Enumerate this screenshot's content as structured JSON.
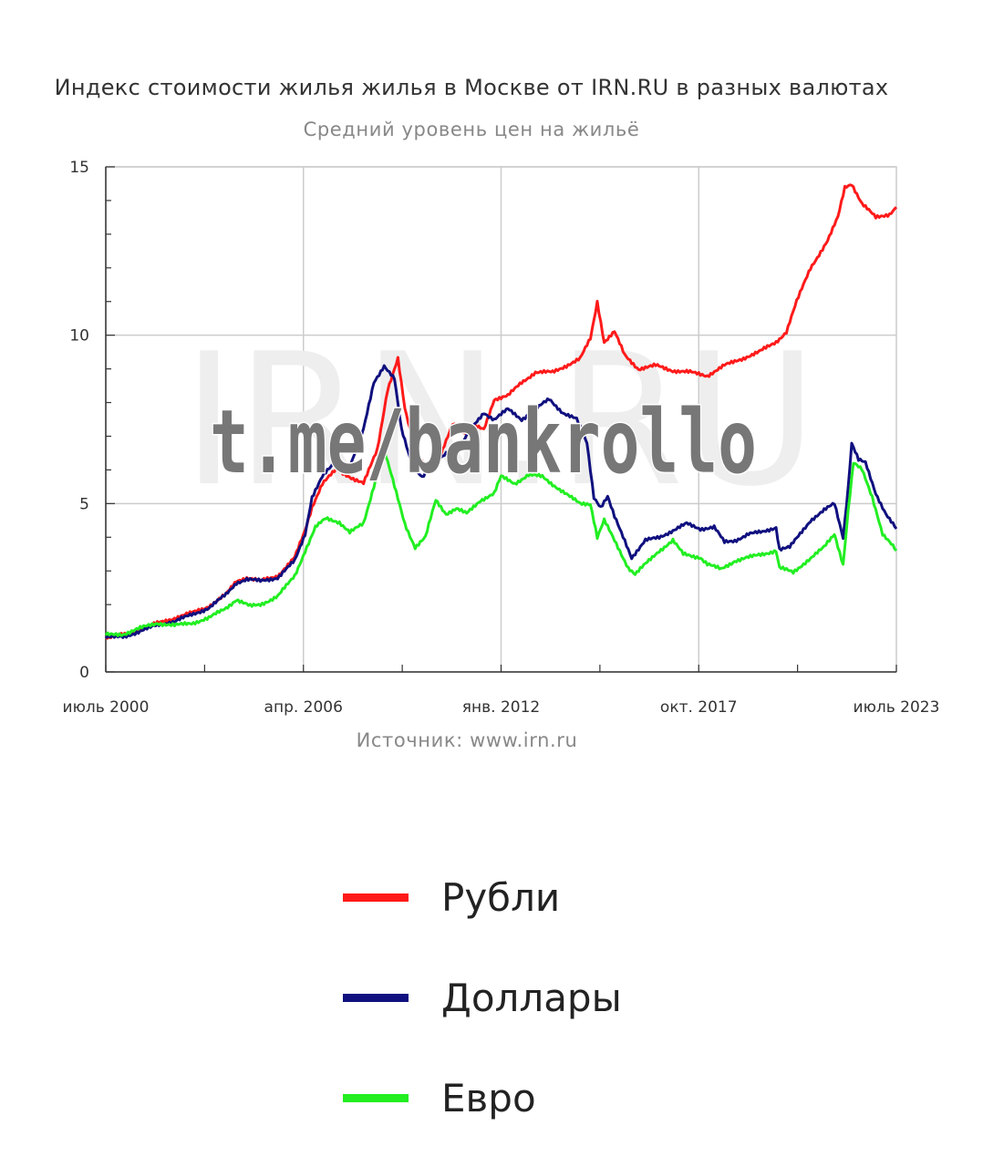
{
  "chart_data": {
    "type": "line",
    "title": "Индекс стоимости жилья жилья в Москве от IRN.RU в разных валютах",
    "subtitle": "Средний уровень цен на жильё",
    "source": "Источник: www.irn.ru",
    "watermark": "IRN.RU",
    "channel_watermark": "t.me/bankrollo",
    "ylim": [
      0,
      15
    ],
    "yticks": [
      "0",
      "5",
      "10",
      "15"
    ],
    "xlim": [
      2000.5,
      2023.5
    ],
    "xtick_labels": [
      {
        "x": 2000.5,
        "label": "июль 2000"
      },
      {
        "x": 2006.25,
        "label": "апр. 2006"
      },
      {
        "x": 2012.0,
        "label": "янв. 2012"
      },
      {
        "x": 2017.75,
        "label": "окт. 2017"
      },
      {
        "x": 2023.5,
        "label": "июль 2023"
      }
    ],
    "grid": true,
    "legend_position": "bottom",
    "series": [
      {
        "name": "Рубли",
        "color": "#ff1a1a",
        "points": [
          [
            2000.5,
            1.02
          ],
          [
            2001.0,
            1.1
          ],
          [
            2001.5,
            1.25
          ],
          [
            2002.0,
            1.45
          ],
          [
            2002.5,
            1.6
          ],
          [
            2003.0,
            1.75
          ],
          [
            2003.5,
            1.95
          ],
          [
            2004.0,
            2.3
          ],
          [
            2004.3,
            2.7
          ],
          [
            2004.6,
            2.8
          ],
          [
            2005.0,
            2.7
          ],
          [
            2005.5,
            2.85
          ],
          [
            2006.0,
            3.4
          ],
          [
            2006.3,
            4.2
          ],
          [
            2006.5,
            4.9
          ],
          [
            2006.8,
            5.6
          ],
          [
            2007.2,
            6.0
          ],
          [
            2007.6,
            5.8
          ],
          [
            2008.0,
            5.6
          ],
          [
            2008.4,
            6.6
          ],
          [
            2008.7,
            8.4
          ],
          [
            2009.0,
            9.3
          ],
          [
            2009.2,
            7.8
          ],
          [
            2009.5,
            6.6
          ],
          [
            2009.8,
            6.1
          ],
          [
            2010.2,
            6.3
          ],
          [
            2010.6,
            7.4
          ],
          [
            2010.9,
            7.1
          ],
          [
            2011.2,
            7.3
          ],
          [
            2011.5,
            7.2
          ],
          [
            2011.8,
            8.1
          ],
          [
            2012.2,
            8.2
          ],
          [
            2012.6,
            8.6
          ],
          [
            2013.0,
            8.9
          ],
          [
            2013.5,
            8.9
          ],
          [
            2013.9,
            9.1
          ],
          [
            2014.3,
            9.3
          ],
          [
            2014.6,
            9.9
          ],
          [
            2014.8,
            11.0
          ],
          [
            2015.0,
            9.8
          ],
          [
            2015.3,
            10.1
          ],
          [
            2015.6,
            9.4
          ],
          [
            2016.0,
            9.0
          ],
          [
            2016.5,
            9.1
          ],
          [
            2017.0,
            8.95
          ],
          [
            2017.5,
            8.9
          ],
          [
            2018.0,
            8.8
          ],
          [
            2018.5,
            9.1
          ],
          [
            2019.0,
            9.3
          ],
          [
            2019.5,
            9.5
          ],
          [
            2020.0,
            9.8
          ],
          [
            2020.3,
            10.1
          ],
          [
            2020.6,
            11.0
          ],
          [
            2021.0,
            12.0
          ],
          [
            2021.5,
            12.8
          ],
          [
            2021.8,
            13.5
          ],
          [
            2022.0,
            14.4
          ],
          [
            2022.2,
            14.5
          ],
          [
            2022.5,
            13.9
          ],
          [
            2022.9,
            13.5
          ],
          [
            2023.3,
            13.6
          ],
          [
            2023.5,
            13.8
          ]
        ]
      },
      {
        "name": "Доллары",
        "color": "#10107f",
        "points": [
          [
            2000.5,
            1.02
          ],
          [
            2001.0,
            1.05
          ],
          [
            2001.5,
            1.2
          ],
          [
            2002.0,
            1.4
          ],
          [
            2002.5,
            1.5
          ],
          [
            2003.0,
            1.7
          ],
          [
            2003.5,
            1.9
          ],
          [
            2004.0,
            2.3
          ],
          [
            2004.3,
            2.65
          ],
          [
            2004.6,
            2.75
          ],
          [
            2005.0,
            2.7
          ],
          [
            2005.5,
            2.8
          ],
          [
            2006.0,
            3.3
          ],
          [
            2006.3,
            4.1
          ],
          [
            2006.5,
            5.2
          ],
          [
            2006.8,
            5.8
          ],
          [
            2007.2,
            6.25
          ],
          [
            2007.6,
            6.1
          ],
          [
            2008.0,
            7.2
          ],
          [
            2008.3,
            8.6
          ],
          [
            2008.6,
            9.1
          ],
          [
            2008.9,
            8.7
          ],
          [
            2009.1,
            7.2
          ],
          [
            2009.4,
            6.2
          ],
          [
            2009.7,
            5.8
          ],
          [
            2010.0,
            6.1
          ],
          [
            2010.5,
            6.6
          ],
          [
            2010.8,
            6.7
          ],
          [
            2011.2,
            7.3
          ],
          [
            2011.5,
            7.7
          ],
          [
            2011.8,
            7.5
          ],
          [
            2012.2,
            7.8
          ],
          [
            2012.6,
            7.5
          ],
          [
            2013.0,
            7.8
          ],
          [
            2013.4,
            8.1
          ],
          [
            2013.8,
            7.7
          ],
          [
            2014.2,
            7.5
          ],
          [
            2014.5,
            6.8
          ],
          [
            2014.7,
            5.2
          ],
          [
            2014.9,
            4.9
          ],
          [
            2015.1,
            5.2
          ],
          [
            2015.3,
            4.6
          ],
          [
            2015.6,
            3.9
          ],
          [
            2015.8,
            3.4
          ],
          [
            2016.2,
            3.9
          ],
          [
            2016.6,
            4.0
          ],
          [
            2017.0,
            4.2
          ],
          [
            2017.4,
            4.4
          ],
          [
            2017.8,
            4.25
          ],
          [
            2018.2,
            4.3
          ],
          [
            2018.5,
            3.85
          ],
          [
            2018.8,
            3.9
          ],
          [
            2019.2,
            4.1
          ],
          [
            2019.6,
            4.15
          ],
          [
            2020.0,
            4.3
          ],
          [
            2020.1,
            3.65
          ],
          [
            2020.4,
            3.7
          ],
          [
            2020.7,
            4.1
          ],
          [
            2021.0,
            4.5
          ],
          [
            2021.4,
            4.8
          ],
          [
            2021.7,
            5.0
          ],
          [
            2021.95,
            4.0
          ],
          [
            2022.1,
            5.5
          ],
          [
            2022.2,
            6.8
          ],
          [
            2022.4,
            6.3
          ],
          [
            2022.6,
            6.2
          ],
          [
            2022.9,
            5.3
          ],
          [
            2023.2,
            4.7
          ],
          [
            2023.5,
            4.25
          ]
        ]
      },
      {
        "name": "Евро",
        "color": "#22ee22",
        "points": [
          [
            2000.5,
            1.1
          ],
          [
            2001.0,
            1.12
          ],
          [
            2001.5,
            1.3
          ],
          [
            2002.0,
            1.45
          ],
          [
            2002.5,
            1.38
          ],
          [
            2003.0,
            1.45
          ],
          [
            2003.5,
            1.6
          ],
          [
            2004.0,
            1.9
          ],
          [
            2004.3,
            2.15
          ],
          [
            2004.7,
            1.95
          ],
          [
            2005.0,
            2.0
          ],
          [
            2005.5,
            2.25
          ],
          [
            2006.0,
            2.85
          ],
          [
            2006.3,
            3.6
          ],
          [
            2006.6,
            4.3
          ],
          [
            2006.9,
            4.55
          ],
          [
            2007.3,
            4.45
          ],
          [
            2007.6,
            4.15
          ],
          [
            2008.0,
            4.4
          ],
          [
            2008.4,
            5.9
          ],
          [
            2008.6,
            6.6
          ],
          [
            2008.9,
            5.5
          ],
          [
            2009.2,
            4.4
          ],
          [
            2009.5,
            3.7
          ],
          [
            2009.8,
            4.0
          ],
          [
            2010.1,
            5.1
          ],
          [
            2010.4,
            4.7
          ],
          [
            2010.7,
            4.85
          ],
          [
            2011.0,
            4.7
          ],
          [
            2011.4,
            5.1
          ],
          [
            2011.8,
            5.3
          ],
          [
            2012.0,
            5.8
          ],
          [
            2012.4,
            5.6
          ],
          [
            2012.8,
            5.85
          ],
          [
            2013.2,
            5.8
          ],
          [
            2013.6,
            5.5
          ],
          [
            2014.0,
            5.2
          ],
          [
            2014.3,
            5.0
          ],
          [
            2014.6,
            5.0
          ],
          [
            2014.8,
            4.0
          ],
          [
            2015.0,
            4.5
          ],
          [
            2015.3,
            3.9
          ],
          [
            2015.7,
            3.1
          ],
          [
            2015.9,
            2.9
          ],
          [
            2016.2,
            3.2
          ],
          [
            2016.6,
            3.6
          ],
          [
            2017.0,
            3.9
          ],
          [
            2017.3,
            3.5
          ],
          [
            2017.8,
            3.4
          ],
          [
            2018.0,
            3.2
          ],
          [
            2018.4,
            3.05
          ],
          [
            2018.8,
            3.3
          ],
          [
            2019.2,
            3.4
          ],
          [
            2019.6,
            3.5
          ],
          [
            2020.0,
            3.6
          ],
          [
            2020.1,
            3.1
          ],
          [
            2020.5,
            2.95
          ],
          [
            2020.9,
            3.3
          ],
          [
            2021.4,
            3.7
          ],
          [
            2021.7,
            4.1
          ],
          [
            2021.95,
            3.2
          ],
          [
            2022.1,
            4.8
          ],
          [
            2022.25,
            6.2
          ],
          [
            2022.5,
            6.0
          ],
          [
            2022.8,
            5.2
          ],
          [
            2023.1,
            4.1
          ],
          [
            2023.5,
            3.6
          ]
        ]
      }
    ]
  }
}
